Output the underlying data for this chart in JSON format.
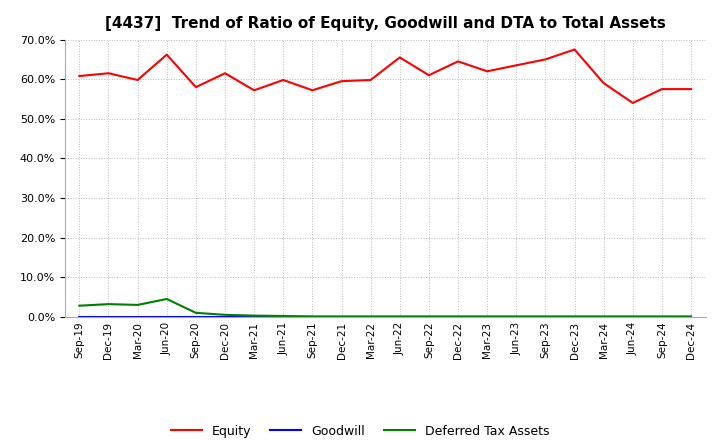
{
  "title": "[4437]  Trend of Ratio of Equity, Goodwill and DTA to Total Assets",
  "x_labels": [
    "Sep-19",
    "Dec-19",
    "Mar-20",
    "Jun-20",
    "Sep-20",
    "Dec-20",
    "Mar-21",
    "Jun-21",
    "Sep-21",
    "Dec-21",
    "Mar-22",
    "Jun-22",
    "Sep-22",
    "Dec-22",
    "Mar-23",
    "Jun-23",
    "Sep-23",
    "Dec-23",
    "Mar-24",
    "Jun-24",
    "Sep-24",
    "Dec-24"
  ],
  "equity": [
    60.8,
    61.5,
    59.8,
    66.2,
    58.0,
    61.5,
    57.2,
    59.8,
    57.2,
    59.5,
    59.8,
    65.5,
    61.0,
    64.5,
    62.0,
    63.5,
    65.0,
    67.5,
    59.0,
    54.0,
    57.5,
    57.5
  ],
  "goodwill": [
    0.0,
    0.0,
    0.0,
    0.0,
    0.0,
    0.0,
    0.0,
    0.0,
    0.0,
    0.0,
    0.0,
    0.0,
    0.0,
    0.0,
    0.0,
    0.0,
    0.0,
    0.0,
    0.0,
    0.0,
    0.0,
    0.0
  ],
  "dta": [
    2.8,
    3.2,
    3.0,
    4.5,
    1.0,
    0.5,
    0.3,
    0.2,
    0.1,
    0.1,
    0.1,
    0.1,
    0.1,
    0.1,
    0.1,
    0.1,
    0.1,
    0.1,
    0.1,
    0.1,
    0.1,
    0.1
  ],
  "equity_color": "#FF0000",
  "goodwill_color": "#0000FF",
  "dta_color": "#008000",
  "ylim": [
    0.0,
    70.0
  ],
  "yticks": [
    0.0,
    10.0,
    20.0,
    30.0,
    40.0,
    50.0,
    60.0,
    70.0
  ],
  "bg_color": "#FFFFFF",
  "plot_bg_color": "#FFFFFF",
  "grid_color": "#AAAAAA",
  "title_fontsize": 11,
  "legend_labels": [
    "Equity",
    "Goodwill",
    "Deferred Tax Assets"
  ]
}
